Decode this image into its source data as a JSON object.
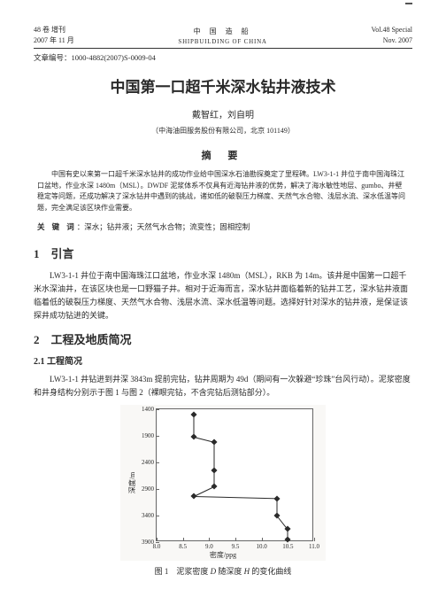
{
  "top_tag": "",
  "header": {
    "left_line1": "48 卷  增刊",
    "left_line2": "2007 年 11 月",
    "center_cn": "中  国  造  船",
    "center_en": "SHIPBUILDING OF CHINA",
    "right_line1": "Vol.48  Special",
    "right_line2": "Nov. 2007"
  },
  "article_number_label": "文章编号：",
  "article_number": "1000-4882(2007)S-0009-04",
  "title": "中国第一口超千米深水钻井液技术",
  "authors": "戴智红，刘自明",
  "affiliation": "（中海油田服务股份有限公司，北京 101149）",
  "abstract_heading": "摘 要",
  "abstract": "中国有史以来第一口超千米深水钻井的成功作业给中国深水石油勘探奠定了里程碑。LW3-1-1 井位于南中国海珠江口盆地，作业水深 1480m（MSL）。DWDF 泥浆体系不仅具有近海钻井液的优势，解决了海水敏性地层、gumbo、井壁稳定等问题，还成功解决了深水钻井中遇到的挑战，诸如低的破裂压力梯度、天然气水合物、浅层水流、深水低温等问题，完全满足该区块作业需要。",
  "keywords_label": "关 键 词",
  "keywords": "：深水；钻井液；天然气水合物；流变性；固相控制",
  "section1_num": "1",
  "section1_title": "引言",
  "section1_para": "LW3-1-1 井位于南中国海珠江口盆地，作业水深 1480m（MSL），RKB 为 14m。该井是中国第一口超千米水深油井，在该区块也是一口野猫子井。相对于近海而言，深水钻井面临着新的钻井工艺，深水钻井液面临着低的破裂压力梯度、天然气水合物、浅层水流、深水低温等问题。选择好针对深水的钻井液，是保证该探井成功钻进的关键。",
  "section2_num": "2",
  "section2_title": "工程及地质简况",
  "subsection21_num": "2.1",
  "subsection21_title": "工程简况",
  "section21_para": "LW3-1-1 井钻进到井深 3843m 提前完钻，钻井周期为 49d（期间有一次躲避“珍珠”台风行动）。泥浆密度和井身结构分别示于图 1 与图 2（裸眼完钻，不含完钻后测钻部分）。",
  "chart": {
    "type": "line",
    "ylabel": "深度/m",
    "xlabel": "密度/ppg",
    "y_range": [
      1400,
      3900
    ],
    "y_ticks": [
      1400,
      1900,
      2400,
      2900,
      3400,
      3900
    ],
    "x_range": [
      8.0,
      11.0
    ],
    "x_ticks": [
      "8.0",
      "8.5",
      "9.0",
      "9.5",
      "10.0",
      "10.5",
      "11.0"
    ],
    "points": [
      [
        8.7,
        1500
      ],
      [
        8.7,
        1920
      ],
      [
        9.1,
        2020
      ],
      [
        9.1,
        2550
      ],
      [
        9.1,
        2850
      ],
      [
        8.7,
        3040
      ],
      [
        10.3,
        3080
      ],
      [
        10.3,
        3400
      ],
      [
        10.5,
        3650
      ],
      [
        10.5,
        3850
      ]
    ],
    "marker_color": "#2a2a2a",
    "line_color": "#2a2a2a",
    "bg_color": "#ffffff",
    "border_color": "#666666",
    "tick_fontsize": 7,
    "label_fontsize": 8
  },
  "fig_caption_pre": "图 1　泥浆密度 ",
  "fig_caption_D": "D",
  "fig_caption_mid": " 随深度 ",
  "fig_caption_H": "H",
  "fig_caption_post": " 的变化曲线"
}
